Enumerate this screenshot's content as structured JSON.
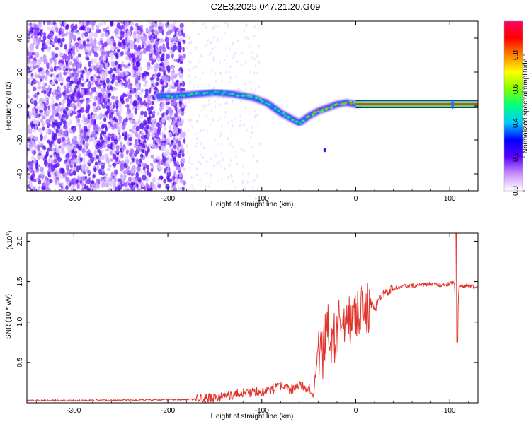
{
  "title": "C2E3.2025.047.21.20.G09",
  "colors": {
    "snr_line": "#e0332b",
    "spectrum_low": "#b88cff",
    "spectrum_mid": "#2a2cff",
    "track": "#ff2a3a"
  },
  "chart_data": [
    {
      "type": "heatmap",
      "xlabel": "Height of straight line (km)",
      "ylabel": "Frequency (Hz)",
      "xlim": [
        -350,
        130
      ],
      "ylim": [
        -50,
        50
      ],
      "xticks": [
        -300,
        -200,
        -100,
        0,
        100
      ],
      "yticks": [
        -40,
        -20,
        0,
        20,
        40
      ],
      "colorbar": {
        "label": "Normalized spectral amplitude",
        "range": [
          0.0,
          1.0
        ],
        "ticks": [
          "0.0",
          "0.2",
          "0.4",
          "0.6",
          "0.8"
        ],
        "stops": [
          "#ffffff",
          "#c890ff",
          "#5a00ff",
          "#0000ff",
          "#00c8ff",
          "#00ff80",
          "#80ff00",
          "#ffff00",
          "#ff8000",
          "#ff0000",
          "#ff0060"
        ]
      },
      "ridge": {
        "x": [
          -210,
          -190,
          -170,
          -150,
          -130,
          -110,
          -95,
          -80,
          -70,
          -60,
          -50,
          -40,
          -30,
          -20,
          -10,
          0,
          50,
          100,
          130
        ],
        "y": [
          6,
          6,
          7,
          8,
          7,
          5,
          2,
          -4,
          -7,
          -10,
          -6,
          -3,
          -1,
          1,
          2,
          1,
          1,
          1,
          1
        ]
      }
    },
    {
      "type": "line",
      "xlabel": "Height of straight line (km)",
      "ylabel": "SNR (10 * v/v)",
      "y_multiplier": "(x10",
      "y_multiplier_exp": "4",
      "xlim": [
        -350,
        130
      ],
      "ylim": [
        0,
        2.1
      ],
      "xticks": [
        -300,
        -200,
        -100,
        0,
        100
      ],
      "yticks": [
        "0.5",
        "1.0",
        "1.5",
        "2.0"
      ],
      "series": [
        {
          "x": [
            -350,
            -300,
            -250,
            -200,
            -180,
            -160,
            -140,
            -120,
            -100,
            -90,
            -80,
            -70,
            -60,
            -50,
            -45,
            -40,
            -35,
            -30,
            -25,
            -20,
            -15,
            -10,
            -5,
            0,
            5,
            10,
            15,
            20,
            25,
            30,
            40,
            50,
            60,
            70,
            80,
            90,
            100,
            105,
            107,
            110,
            120,
            130
          ],
          "y": [
            0.03,
            0.03,
            0.03,
            0.04,
            0.04,
            0.05,
            0.08,
            0.12,
            0.14,
            0.16,
            0.2,
            0.16,
            0.22,
            0.18,
            0.12,
            0.7,
            0.6,
            0.9,
            0.6,
            1.0,
            0.8,
            0.9,
            1.1,
            1.0,
            1.2,
            1.1,
            1.25,
            1.15,
            1.3,
            1.35,
            1.42,
            1.44,
            1.45,
            1.46,
            1.47,
            1.46,
            1.47,
            1.5,
            0.75,
            1.45,
            1.44,
            1.43
          ]
        }
      ]
    }
  ]
}
